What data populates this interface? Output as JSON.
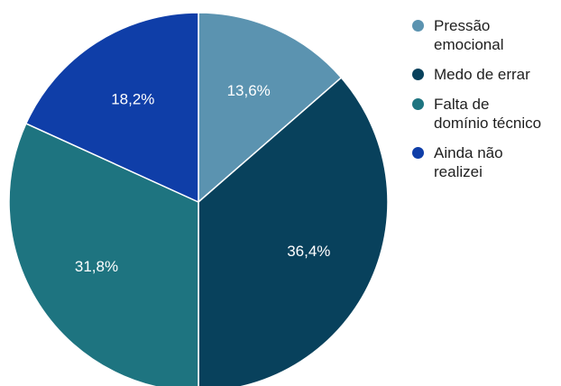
{
  "chart_data": {
    "type": "pie",
    "title": "",
    "slices": [
      {
        "label": "Pressão\nemocional",
        "value": 13.6,
        "value_label": "13,6%",
        "color": "#5b93b0"
      },
      {
        "label": "Medo de errar",
        "value": 36.4,
        "value_label": "36,4%",
        "color": "#08415c"
      },
      {
        "label": "Falta de\ndomínio técnico",
        "value": 31.8,
        "value_label": "31,8%",
        "color": "#1e7480"
      },
      {
        "label": "Ainda não\nrealizei",
        "value": 18.2,
        "value_label": "18,2%",
        "color": "#0f3ea8"
      }
    ],
    "start_angle": "12 o'clock",
    "direction": "clockwise",
    "legend_position": "right"
  }
}
